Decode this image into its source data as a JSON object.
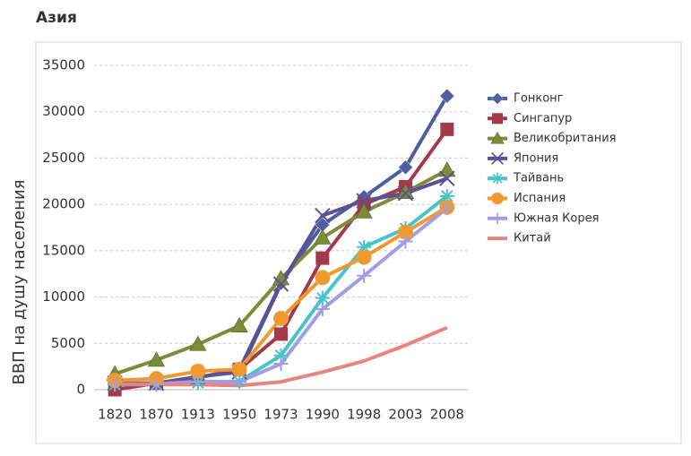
{
  "chart_data": {
    "type": "line",
    "title": "Азия",
    "y_label": "ВВП на душу населения",
    "categories": [
      "1820",
      "1870",
      "1913",
      "1950",
      "1973",
      "1990",
      "1998",
      "2003",
      "2008"
    ],
    "ylim": [
      0,
      35000
    ],
    "yticks": [
      0,
      5000,
      10000,
      15000,
      20000,
      25000,
      30000,
      35000
    ],
    "grid": true,
    "legend": "right",
    "series": [
      {
        "name": "Гонконг",
        "color": "#4e5f9e",
        "marker": "diamond",
        "values": [
          600,
          700,
          1300,
          2200,
          11500,
          17800,
          20800,
          24000,
          31700
        ]
      },
      {
        "name": "Сингапур",
        "color": "#a23a4c",
        "marker": "square",
        "values": [
          0,
          700,
          1300,
          2200,
          6000,
          14200,
          20000,
          21900,
          28100
        ]
      },
      {
        "name": "Великобритания",
        "color": "#7c8c3a",
        "marker": "triangle",
        "values": [
          1700,
          3200,
          4900,
          6900,
          12000,
          16400,
          19200,
          21300,
          23700
        ]
      },
      {
        "name": "Япония",
        "color": "#5a5196",
        "marker": "x",
        "values": [
          700,
          700,
          1400,
          1900,
          11400,
          18800,
          20400,
          21200,
          22800
        ]
      },
      {
        "name": "Тайвань",
        "color": "#46c4c8",
        "marker": "asterisk",
        "values": [
          550,
          550,
          750,
          900,
          3700,
          9900,
          15400,
          17400,
          20900
        ]
      },
      {
        "name": "Испания",
        "color": "#f09a2e",
        "marker": "circle",
        "values": [
          1000,
          1200,
          2000,
          2200,
          7700,
          12100,
          14300,
          17000,
          19700
        ]
      },
      {
        "name": "Южная Корея",
        "color": "#a29de6",
        "marker": "plus",
        "values": [
          600,
          600,
          900,
          850,
          2800,
          8700,
          12300,
          16000,
          19600
        ]
      },
      {
        "name": "Китай",
        "color": "#e8837e",
        "marker": "none",
        "values": [
          600,
          550,
          550,
          450,
          850,
          1900,
          3100,
          4800,
          6700
        ]
      }
    ]
  }
}
